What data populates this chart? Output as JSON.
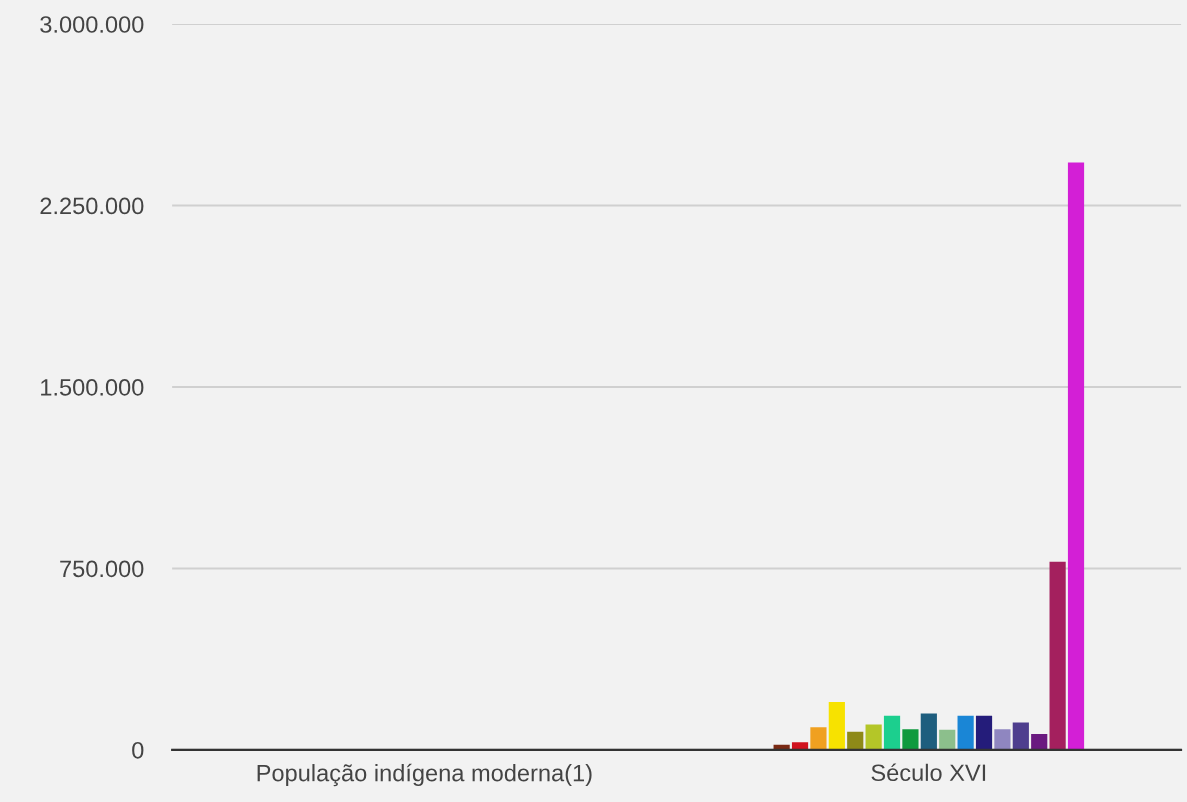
{
  "chart_data": {
    "type": "bar",
    "categories": [
      "População indígena moderna(1)",
      "Século XVI"
    ],
    "series": [
      {
        "color": "#7a2a14",
        "values": [
          0,
          21000
        ]
      },
      {
        "color": "#d0121e",
        "values": [
          0,
          31000
        ]
      },
      {
        "color": "#f0a020",
        "values": [
          0,
          94000
        ]
      },
      {
        "color": "#f7e200",
        "values": [
          0,
          198000
        ]
      },
      {
        "color": "#8e8a18",
        "values": [
          0,
          75000
        ]
      },
      {
        "color": "#b4c628",
        "values": [
          0,
          105000
        ]
      },
      {
        "color": "#1ccf8e",
        "values": [
          0,
          141000
        ]
      },
      {
        "color": "#0f9a3e",
        "values": [
          0,
          85000
        ]
      },
      {
        "color": "#1e5e7e",
        "values": [
          0,
          150000
        ]
      },
      {
        "color": "#8cbf8c",
        "values": [
          0,
          83000
        ]
      },
      {
        "color": "#1a86d6",
        "values": [
          0,
          141000
        ]
      },
      {
        "color": "#241c7a",
        "values": [
          0,
          141000
        ]
      },
      {
        "color": "#8f86c0",
        "values": [
          0,
          85000
        ]
      },
      {
        "color": "#4e3e8e",
        "values": [
          0,
          113000
        ]
      },
      {
        "color": "#6a1a80",
        "values": [
          0,
          66000
        ]
      },
      {
        "color": "#a4205e",
        "values": [
          0,
          778000
        ]
      },
      {
        "color": "#d31fd6",
        "values": [
          0,
          2428000
        ]
      }
    ],
    "ylim": [
      0,
      3000000
    ],
    "yticks": [
      0,
      {
        "value": 750000,
        "label": "750.000"
      },
      {
        "value": 1500000,
        "label": "1.500.000"
      },
      {
        "value": 2250000,
        "label": "2.250.000"
      },
      {
        "value": 3000000,
        "label": "3.000.000"
      }
    ],
    "grid": "y",
    "legend": false
  }
}
